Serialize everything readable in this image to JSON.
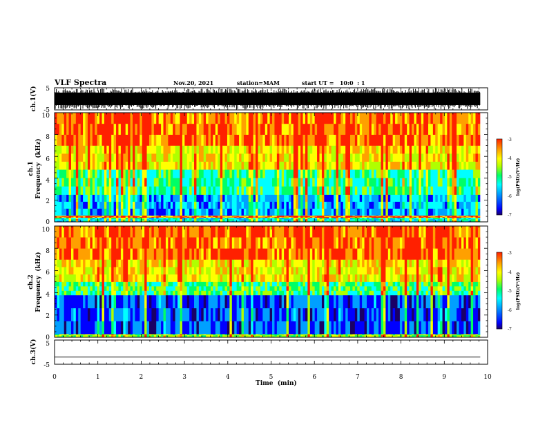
{
  "header": {
    "title": "VLF Spectra",
    "date": "Nov.20, 2021",
    "station": "station=MAM",
    "start": "start UT =   10:0  : 1"
  },
  "colors": {
    "waveform": "#000000",
    "colormap": [
      "#1a0066",
      "#0000ff",
      "#00a0ff",
      "#00ffff",
      "#00ff66",
      "#b0ff00",
      "#ffff00",
      "#ffa000",
      "#ff2000"
    ]
  },
  "chart_data": [
    {
      "type": "line",
      "panel": "ch1-waveform",
      "ylabel": "ch.1(V)",
      "ylim": [
        -5,
        5
      ],
      "yticks": [
        "5",
        "-5"
      ],
      "note": "dense sferic impulses saturating between +5 V and -5 V across whole record"
    },
    {
      "type": "heatmap",
      "panel": "ch1-spectrogram",
      "ylabel_lines": [
        "ch.1",
        "Frequency  (kHz)"
      ],
      "ylim": [
        0,
        10
      ],
      "yticks": [
        "0",
        "2",
        "4",
        "6",
        "8",
        "10"
      ],
      "xlim": [
        0,
        9.83
      ],
      "bands": [
        {
          "freq_kHz": [
            0,
            0.4
          ],
          "log_psd": -5.4
        },
        {
          "freq_kHz": [
            0.4,
            0.6
          ],
          "log_psd": -3.6
        },
        {
          "freq_kHz": [
            0.6,
            2.5
          ],
          "log_psd": -5.8
        },
        {
          "freq_kHz": [
            2.5,
            4.8
          ],
          "log_psd": -5.1
        },
        {
          "freq_kHz": [
            4.8,
            7.0
          ],
          "log_psd": -4.2
        },
        {
          "freq_kHz": [
            7.0,
            10.0
          ],
          "log_psd": -3.6
        }
      ],
      "colorbar": {
        "label": "log(PSD)(V²/Hz)",
        "range": [
          -7,
          -3
        ],
        "ticks": [
          "-3",
          "-4",
          "-5",
          "-6",
          "-7"
        ]
      }
    },
    {
      "type": "heatmap",
      "panel": "ch2-spectrogram",
      "ylabel_lines": [
        "ch.2",
        "Frequency  (kHz)"
      ],
      "ylim": [
        0,
        10
      ],
      "yticks": [
        "0",
        "2",
        "4",
        "6",
        "8",
        "10"
      ],
      "xlim": [
        0,
        9.83
      ],
      "bands": [
        {
          "freq_kHz": [
            0,
            0.3
          ],
          "log_psd": -4.6
        },
        {
          "freq_kHz": [
            0.3,
            3.8
          ],
          "log_psd": -6.2
        },
        {
          "freq_kHz": [
            3.8,
            5.0
          ],
          "log_psd": -5.0
        },
        {
          "freq_kHz": [
            5.0,
            7.0
          ],
          "log_psd": -4.1
        },
        {
          "freq_kHz": [
            7.0,
            10.0
          ],
          "log_psd": -3.5
        }
      ],
      "colorbar": {
        "label": "log(PSD)(V²/Hz)",
        "range": [
          -7,
          -3
        ],
        "ticks": [
          "-3",
          "-4",
          "-5",
          "-6",
          "-7"
        ]
      }
    },
    {
      "type": "line",
      "panel": "ch3-waveform",
      "ylabel": "ch.3(V)",
      "ylim": [
        -5,
        5
      ],
      "yticks": [
        "5",
        "-5"
      ],
      "x": [
        0,
        9.83
      ],
      "y": [
        -2,
        -2
      ]
    }
  ],
  "xaxis": {
    "label": "Time  (min)",
    "range": [
      0,
      10
    ],
    "ticks": [
      "0",
      "1",
      "2",
      "3",
      "4",
      "5",
      "6",
      "7",
      "8",
      "9",
      "10"
    ]
  }
}
